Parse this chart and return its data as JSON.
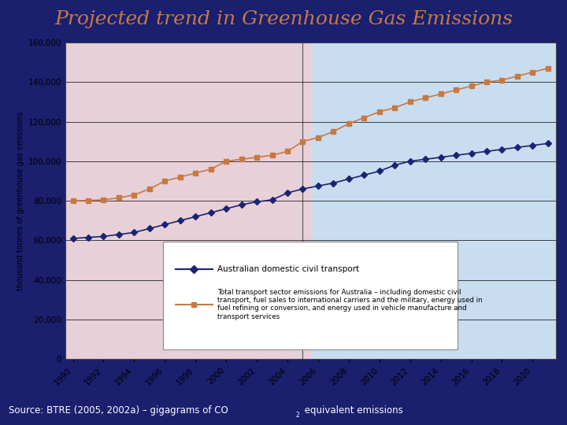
{
  "title": "Projected trend in Greenhouse Gas Emissions",
  "title_color": "#c87941",
  "bg_outer": "#1a1f6e",
  "bg_plot_left": "#e8d0d8",
  "bg_plot_right": "#c8ddf0",
  "ylabel": "thousand tonnes of greenhouse gas emissions",
  "years": [
    1990,
    1991,
    1992,
    1993,
    1994,
    1995,
    1996,
    1997,
    1998,
    1999,
    2000,
    2001,
    2002,
    2003,
    2004,
    2005,
    2006,
    2007,
    2008,
    2009,
    2010,
    2011,
    2012,
    2013,
    2014,
    2015,
    2016,
    2017,
    2018,
    2019,
    2020,
    2021
  ],
  "domestic": [
    61000,
    61500,
    62000,
    63000,
    64000,
    66000,
    68000,
    70000,
    72000,
    74000,
    76000,
    78000,
    79500,
    80500,
    84000,
    86000,
    87500,
    89000,
    91000,
    93000,
    95000,
    98000,
    100000,
    101000,
    102000,
    103000,
    104000,
    105000,
    106000,
    107000,
    108000,
    109000
  ],
  "total": [
    80000,
    80200,
    80500,
    81500,
    83000,
    86000,
    90000,
    92000,
    94000,
    96000,
    100000,
    101000,
    102000,
    103000,
    105000,
    110000,
    112000,
    115000,
    119000,
    122000,
    125000,
    127000,
    130000,
    132000,
    134000,
    136000,
    138000,
    140000,
    141000,
    143000,
    145000,
    147000
  ],
  "divider_year": 2005,
  "ylim": [
    0,
    160000
  ],
  "yticks": [
    0,
    20000,
    40000,
    60000,
    80000,
    100000,
    120000,
    140000,
    160000
  ],
  "domestic_color": "#1a2472",
  "total_color": "#c87941",
  "legend_label_domestic": "Australian domestic civil transport",
  "legend_label_total": "Total transport sector emissions for Australia – including domestic civil\ntransport, fuel sales to international carriers and the military, energy used in\nfuel refining or conversion, and energy used in vehicle manufacture and\ntransport services"
}
